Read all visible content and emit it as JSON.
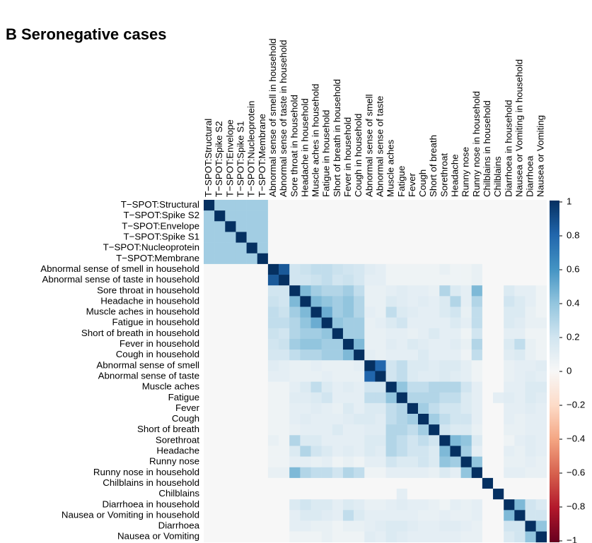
{
  "chart_data": {
    "type": "heatmap",
    "title": "B Seronegative cases",
    "categories": [
      "T−SPOT:Structural",
      "T−SPOT:Spike S2",
      "T−SPOT:Envelope",
      "T−SPOT:Spike S1",
      "T−SPOT:Nucleoprotein",
      "T−SPOT:Membrane",
      "Abnormal sense of smell in household",
      "Abnormal sense of taste in household",
      "Sore throat in household",
      "Headache in household",
      "Muscle aches in household",
      "Fatigue in household",
      "Short of breath in household",
      "Fever in household",
      "Cough in household",
      "Abnormal sense of smell",
      "Abnormal sense of taste",
      "Muscle aches",
      "Fatigue",
      "Fever",
      "Cough",
      "Short of breath",
      "Sorethroat",
      "Headache",
      "Runny nose",
      "Runny nose in household",
      "Chilblains in household",
      "Chilblains",
      "Diarrhoea in household",
      "Nausea or Vomiting in household",
      "Diarrhoea",
      "Nausea or Vomiting"
    ],
    "matrix": [
      [
        1,
        0.35,
        0.35,
        0.35,
        0.35,
        0.35,
        0,
        0,
        0,
        0,
        0,
        0,
        0,
        0,
        0,
        0,
        0,
        0,
        0,
        0,
        0,
        0,
        0,
        0,
        0,
        0,
        0,
        0,
        0,
        0,
        0,
        0
      ],
      [
        0.35,
        1,
        0.35,
        0.35,
        0.35,
        0.35,
        0,
        0,
        0,
        0,
        0,
        0,
        0,
        0,
        0,
        0,
        0,
        0,
        0,
        0,
        0,
        0,
        0,
        0,
        0,
        0,
        0,
        0,
        0,
        0,
        0,
        0
      ],
      [
        0.35,
        0.35,
        1,
        0.35,
        0.35,
        0.35,
        0,
        0,
        0,
        0,
        0,
        0,
        0,
        0,
        0,
        0,
        0,
        0,
        0,
        0,
        0,
        0,
        0,
        0,
        0,
        0,
        0,
        0,
        0,
        0,
        0,
        0
      ],
      [
        0.35,
        0.35,
        0.35,
        1,
        0.35,
        0.35,
        0,
        0,
        0,
        0,
        0,
        0,
        0,
        0,
        0,
        0,
        0,
        0,
        0,
        0,
        0,
        0,
        0,
        0,
        0,
        0,
        0,
        0,
        0,
        0,
        0,
        0
      ],
      [
        0.35,
        0.35,
        0.35,
        0.35,
        1,
        0.35,
        0,
        0,
        0,
        0,
        0,
        0,
        0,
        0,
        0,
        0,
        0,
        0,
        0,
        0,
        0,
        0,
        0,
        0,
        0,
        0,
        0,
        0,
        0,
        0,
        0,
        0
      ],
      [
        0.35,
        0.35,
        0.35,
        0.35,
        0.35,
        1,
        0,
        0,
        0,
        0,
        0,
        0,
        0,
        0,
        0,
        0,
        0,
        0,
        0,
        0,
        0,
        0,
        0,
        0,
        0,
        0,
        0,
        0,
        0,
        0,
        0,
        0
      ],
      [
        0,
        0,
        0,
        0,
        0,
        0,
        1,
        0.85,
        0.2,
        0.22,
        0.25,
        0.25,
        0.22,
        0.2,
        0.18,
        0.12,
        0.1,
        0.05,
        0.05,
        0.05,
        0.05,
        0.05,
        0.08,
        0.05,
        0.05,
        0.08,
        0,
        0,
        0,
        0,
        0,
        0
      ],
      [
        0,
        0,
        0,
        0,
        0,
        0,
        0.85,
        1,
        0.2,
        0.2,
        0.22,
        0.25,
        0.2,
        0.22,
        0.18,
        0.1,
        0.1,
        0.05,
        0.05,
        0.05,
        0.05,
        0.05,
        0.05,
        0.05,
        0.05,
        0.08,
        0,
        0,
        0,
        0,
        0,
        0
      ],
      [
        0,
        0,
        0,
        0,
        0,
        0,
        0.2,
        0.2,
        1,
        0.45,
        0.35,
        0.3,
        0.3,
        0.35,
        0.25,
        0.08,
        0.08,
        0.1,
        0.12,
        0.1,
        0.1,
        0.08,
        0.3,
        0.15,
        0.1,
        0.45,
        0,
        0,
        0.15,
        0.1,
        0.1,
        0.05
      ],
      [
        0,
        0,
        0,
        0,
        0,
        0,
        0.22,
        0.2,
        0.45,
        1,
        0.45,
        0.4,
        0.35,
        0.4,
        0.3,
        0.08,
        0.08,
        0.15,
        0.12,
        0.1,
        0.12,
        0.1,
        0.15,
        0.3,
        0.1,
        0.3,
        0,
        0,
        0.2,
        0.15,
        0.1,
        0.05
      ],
      [
        0,
        0,
        0,
        0,
        0,
        0,
        0.25,
        0.22,
        0.35,
        0.45,
        1,
        0.5,
        0.35,
        0.4,
        0.3,
        0.1,
        0.08,
        0.25,
        0.15,
        0.12,
        0.1,
        0.1,
        0.15,
        0.2,
        0.08,
        0.25,
        0,
        0,
        0.15,
        0.15,
        0.08,
        0.05
      ],
      [
        0,
        0,
        0,
        0,
        0,
        0,
        0.25,
        0.25,
        0.3,
        0.4,
        0.5,
        1,
        0.4,
        0.35,
        0.35,
        0.08,
        0.1,
        0.15,
        0.2,
        0.1,
        0.1,
        0.1,
        0.1,
        0.15,
        0.1,
        0.25,
        0,
        0,
        0.15,
        0.12,
        0.08,
        0.08
      ],
      [
        0,
        0,
        0,
        0,
        0,
        0,
        0.22,
        0.2,
        0.3,
        0.35,
        0.35,
        0.4,
        1,
        0.35,
        0.35,
        0.08,
        0.08,
        0.1,
        0.1,
        0.08,
        0.1,
        0.15,
        0.1,
        0.1,
        0.05,
        0.2,
        0,
        0,
        0.1,
        0.1,
        0.05,
        0.05
      ],
      [
        0,
        0,
        0,
        0,
        0,
        0,
        0.2,
        0.22,
        0.35,
        0.4,
        0.4,
        0.35,
        0.35,
        1,
        0.45,
        0.08,
        0.08,
        0.12,
        0.1,
        0.15,
        0.12,
        0.1,
        0.1,
        0.12,
        0.08,
        0.3,
        0,
        0,
        0.15,
        0.25,
        0.08,
        0.05
      ],
      [
        0,
        0,
        0,
        0,
        0,
        0,
        0.18,
        0.18,
        0.25,
        0.3,
        0.3,
        0.35,
        0.35,
        0.45,
        1,
        0.1,
        0.08,
        0.1,
        0.1,
        0.1,
        0.15,
        0.1,
        0.1,
        0.1,
        0.05,
        0.25,
        0,
        0,
        0.12,
        0.15,
        0.08,
        0.05
      ],
      [
        0,
        0,
        0,
        0,
        0,
        0,
        0.12,
        0.1,
        0.08,
        0.08,
        0.1,
        0.08,
        0.08,
        0.08,
        0.1,
        1,
        0.8,
        0.2,
        0.25,
        0.15,
        0.15,
        0.12,
        0.15,
        0.15,
        0.1,
        0.05,
        0,
        0,
        0.08,
        0.1,
        0.1,
        0.12
      ],
      [
        0,
        0,
        0,
        0,
        0,
        0,
        0.1,
        0.1,
        0.08,
        0.08,
        0.08,
        0.1,
        0.08,
        0.08,
        0.08,
        0.8,
        1,
        0.2,
        0.25,
        0.15,
        0.12,
        0.12,
        0.15,
        0.12,
        0.1,
        0.05,
        0,
        0,
        0.08,
        0.1,
        0.12,
        0.1
      ],
      [
        0,
        0,
        0,
        0,
        0,
        0,
        0.05,
        0.05,
        0.1,
        0.15,
        0.25,
        0.15,
        0.1,
        0.12,
        0.1,
        0.2,
        0.2,
        1,
        0.4,
        0.25,
        0.25,
        0.3,
        0.3,
        0.3,
        0.2,
        0.1,
        0,
        0,
        0.1,
        0.1,
        0.15,
        0.15
      ],
      [
        0,
        0,
        0,
        0,
        0,
        0,
        0.05,
        0.05,
        0.12,
        0.12,
        0.15,
        0.2,
        0.1,
        0.1,
        0.1,
        0.25,
        0.25,
        0.4,
        1,
        0.3,
        0.3,
        0.3,
        0.25,
        0.25,
        0.15,
        0.1,
        0,
        0.1,
        0.12,
        0.1,
        0.15,
        0.12
      ],
      [
        0,
        0,
        0,
        0,
        0,
        0,
        0.05,
        0.05,
        0.1,
        0.1,
        0.12,
        0.1,
        0.08,
        0.15,
        0.1,
        0.15,
        0.15,
        0.25,
        0.3,
        1,
        0.35,
        0.25,
        0.2,
        0.2,
        0.15,
        0.1,
        0,
        0,
        0.1,
        0.1,
        0.12,
        0.1
      ],
      [
        0,
        0,
        0,
        0,
        0,
        0,
        0.05,
        0.05,
        0.1,
        0.12,
        0.1,
        0.1,
        0.1,
        0.12,
        0.15,
        0.15,
        0.12,
        0.25,
        0.3,
        0.35,
        1,
        0.35,
        0.25,
        0.2,
        0.2,
        0.1,
        0,
        0,
        0.1,
        0.08,
        0.1,
        0.1
      ],
      [
        0,
        0,
        0,
        0,
        0,
        0,
        0.05,
        0.05,
        0.08,
        0.1,
        0.1,
        0.1,
        0.15,
        0.1,
        0.1,
        0.12,
        0.12,
        0.3,
        0.3,
        0.25,
        0.35,
        1,
        0.2,
        0.15,
        0.15,
        0.08,
        0,
        0,
        0.08,
        0.08,
        0.1,
        0.1
      ],
      [
        0,
        0,
        0,
        0,
        0,
        0,
        0.08,
        0.05,
        0.3,
        0.15,
        0.15,
        0.1,
        0.1,
        0.1,
        0.1,
        0.15,
        0.15,
        0.3,
        0.25,
        0.2,
        0.25,
        0.2,
        1,
        0.45,
        0.4,
        0.15,
        0,
        0,
        0.05,
        0.1,
        0.12,
        0.1
      ],
      [
        0,
        0,
        0,
        0,
        0,
        0,
        0.05,
        0.05,
        0.15,
        0.3,
        0.2,
        0.15,
        0.1,
        0.12,
        0.1,
        0.15,
        0.12,
        0.3,
        0.25,
        0.2,
        0.2,
        0.15,
        0.45,
        1,
        0.35,
        0.1,
        0,
        0,
        0.1,
        0.08,
        0.12,
        0.1
      ],
      [
        0,
        0,
        0,
        0,
        0,
        0,
        0.05,
        0.05,
        0.1,
        0.1,
        0.08,
        0.1,
        0.05,
        0.08,
        0.05,
        0.1,
        0.1,
        0.2,
        0.15,
        0.15,
        0.2,
        0.15,
        0.4,
        0.35,
        1,
        0.4,
        0,
        0,
        0.08,
        0.08,
        0.1,
        0.08
      ],
      [
        0,
        0,
        0,
        0,
        0,
        0,
        0.08,
        0.08,
        0.45,
        0.3,
        0.25,
        0.25,
        0.2,
        0.3,
        0.25,
        0.05,
        0.05,
        0.1,
        0.1,
        0.1,
        0.1,
        0.08,
        0.15,
        0.1,
        0.4,
        1,
        0,
        0,
        0.1,
        0.1,
        0.08,
        0.08
      ],
      [
        0,
        0,
        0,
        0,
        0,
        0,
        0,
        0,
        0,
        0,
        0,
        0,
        0,
        0,
        0,
        0,
        0,
        0,
        0,
        0,
        0,
        0,
        0,
        0,
        0,
        0,
        1,
        0,
        0,
        0,
        0,
        0
      ],
      [
        0,
        0,
        0,
        0,
        0,
        0,
        0,
        0,
        0,
        0,
        0,
        0,
        0,
        0,
        0,
        0,
        0,
        0,
        0.1,
        0,
        0,
        0,
        0,
        0,
        0,
        0,
        0,
        1,
        0,
        0,
        0,
        0
      ],
      [
        0,
        0,
        0,
        0,
        0,
        0,
        0,
        0,
        0.15,
        0.2,
        0.15,
        0.15,
        0.1,
        0.15,
        0.12,
        0.08,
        0.08,
        0.1,
        0.12,
        0.1,
        0.1,
        0.08,
        0.05,
        0.1,
        0.08,
        0.1,
        0,
        0,
        1,
        0.45,
        0.2,
        0.15
      ],
      [
        0,
        0,
        0,
        0,
        0,
        0,
        0,
        0,
        0.1,
        0.15,
        0.15,
        0.12,
        0.1,
        0.25,
        0.15,
        0.1,
        0.1,
        0.1,
        0.1,
        0.1,
        0.08,
        0.08,
        0.1,
        0.08,
        0.08,
        0.1,
        0,
        0,
        0.45,
        1,
        0.2,
        0.2
      ],
      [
        0,
        0,
        0,
        0,
        0,
        0,
        0,
        0,
        0.1,
        0.1,
        0.08,
        0.08,
        0.05,
        0.08,
        0.08,
        0.1,
        0.12,
        0.15,
        0.15,
        0.12,
        0.1,
        0.1,
        0.12,
        0.12,
        0.1,
        0.08,
        0,
        0,
        0.2,
        0.2,
        1,
        0.4
      ],
      [
        0,
        0,
        0,
        0,
        0,
        0,
        0,
        0,
        0.05,
        0.05,
        0.05,
        0.08,
        0.05,
        0.05,
        0.05,
        0.12,
        0.1,
        0.15,
        0.12,
        0.1,
        0.1,
        0.1,
        0.1,
        0.1,
        0.08,
        0.08,
        0,
        0,
        0.15,
        0.2,
        0.4,
        1
      ]
    ],
    "colorscale": [
      "#67001f",
      "#b2182b",
      "#d6604d",
      "#f4a582",
      "#fddbc7",
      "#f7f7f7",
      "#d1e5f0",
      "#92c5de",
      "#4393c3",
      "#2166ac",
      "#053061"
    ],
    "clim": [
      -1,
      1
    ],
    "cticks": [
      1,
      0.8,
      0.6,
      0.4,
      0.2,
      0,
      {
        "value": -0.2,
        "label": "−0.2"
      },
      {
        "value": -0.4,
        "label": "−0.4"
      },
      {
        "value": -0.6,
        "label": "−0.6"
      },
      {
        "value": -0.8,
        "label": "−0.8"
      },
      {
        "value": -1,
        "label": "−1"
      }
    ]
  }
}
